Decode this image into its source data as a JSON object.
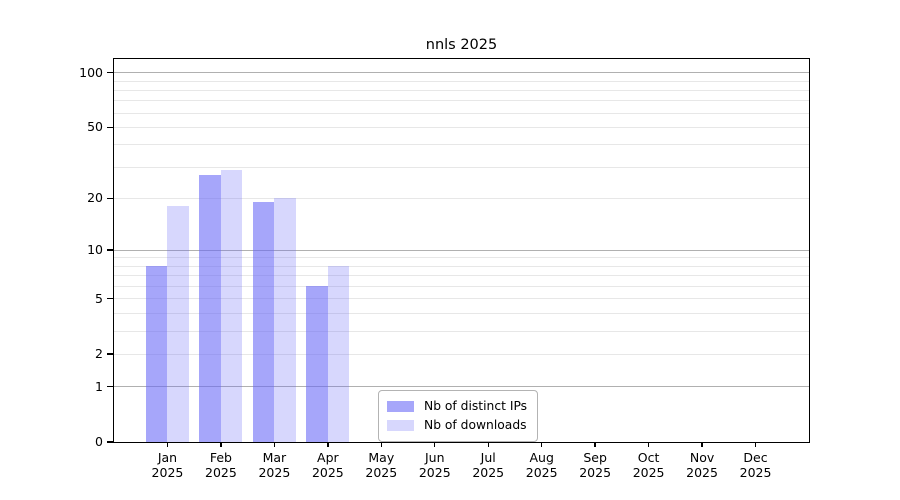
{
  "title": "nnls 2025",
  "colors": {
    "ips_fill": "rgba(102,102,247,0.58)",
    "downloads_fill": "rgba(102,102,247,0.26)",
    "major_grid": "#b0b0b0",
    "minor_grid": "#e7e7e7",
    "spine": "#000000",
    "legend_border": "#b3b3b3"
  },
  "chart_data": {
    "type": "bar",
    "title": "nnls 2025",
    "categories": [
      "Jan",
      "Feb",
      "Mar",
      "Apr",
      "May",
      "Jun",
      "Jul",
      "Aug",
      "Sep",
      "Oct",
      "Nov",
      "Dec"
    ],
    "category_year": "2025",
    "series": [
      {
        "name": "Nb of distinct IPs",
        "values": [
          8,
          27,
          19,
          6,
          0,
          0,
          0,
          0,
          0,
          0,
          0,
          0
        ]
      },
      {
        "name": "Nb of downloads",
        "values": [
          18,
          29,
          20,
          8,
          0,
          0,
          0,
          0,
          0,
          0,
          0,
          0
        ]
      }
    ],
    "ylabel": "",
    "xlabel": "",
    "yscale": "log(1+y)",
    "ylim": [
      0,
      119
    ],
    "yticks": [
      0,
      1,
      2,
      5,
      10,
      20,
      50,
      100
    ],
    "major_grid_at": [
      1,
      10,
      100
    ],
    "minor_grid_at": [
      2,
      3,
      4,
      5,
      6,
      7,
      8,
      9,
      20,
      30,
      40,
      50,
      60,
      70,
      80,
      90
    ],
    "grid": true,
    "legend_position": "lower center inside"
  }
}
